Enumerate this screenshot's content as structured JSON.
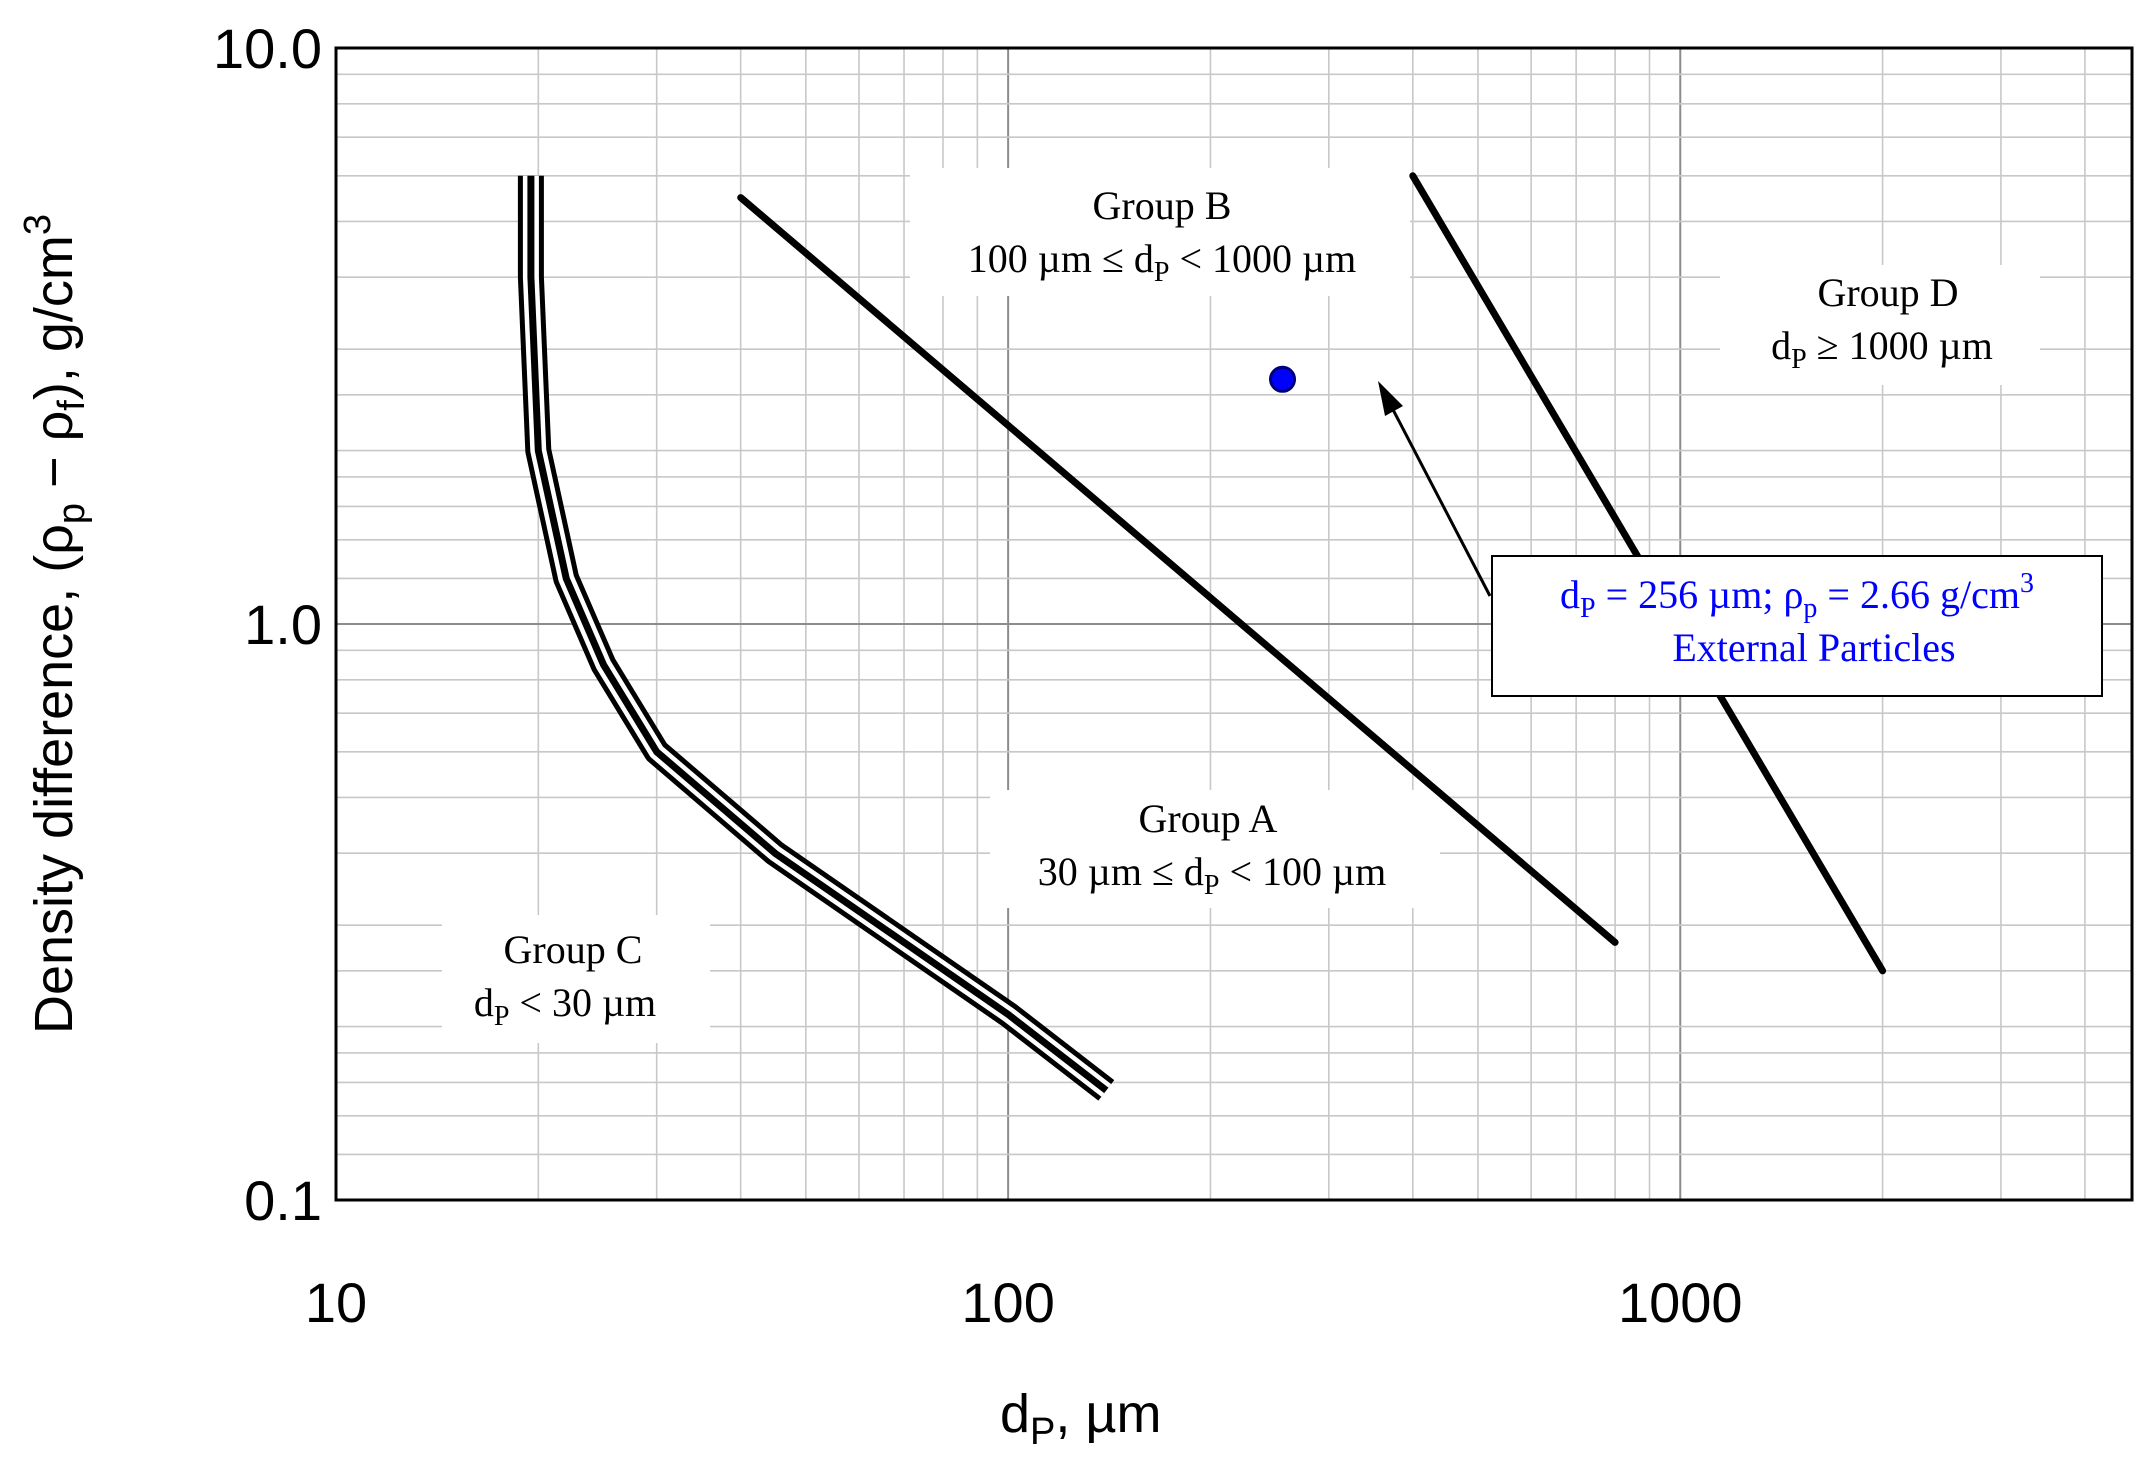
{
  "chart_data": {
    "type": "line",
    "title": "",
    "xlabel": "dP, µm",
    "ylabel": "Density difference, (ρp − ρf), g/cm3",
    "xscale": "log",
    "yscale": "log",
    "xlim": [
      10,
      4700
    ],
    "ylim": [
      0.1,
      10.0
    ],
    "grid": true,
    "xticks": [
      {
        "value": 10,
        "label": "10"
      },
      {
        "value": 100,
        "label": "100"
      },
      {
        "value": 1000,
        "label": "1000"
      }
    ],
    "yticks": [
      {
        "value": 0.1,
        "label": "0.1"
      },
      {
        "value": 1.0,
        "label": "1.0"
      },
      {
        "value": 10.0,
        "label": "10.0"
      }
    ],
    "series": [
      {
        "name": "C/A boundary",
        "style": "triple",
        "points": [
          [
            19.5,
            6.0
          ],
          [
            19.5,
            4.0
          ],
          [
            20,
            2.0
          ],
          [
            22,
            1.2
          ],
          [
            25,
            0.85
          ],
          [
            30,
            0.6
          ],
          [
            45,
            0.4
          ],
          [
            70,
            0.28
          ],
          [
            100,
            0.21
          ],
          [
            140,
            0.155
          ]
        ]
      },
      {
        "name": "A/B boundary",
        "style": "solid",
        "points": [
          [
            40,
            5.5
          ],
          [
            800,
            0.28
          ]
        ]
      },
      {
        "name": "B/D boundary",
        "style": "solid",
        "points": [
          [
            400,
            6.0
          ],
          [
            2000,
            0.25
          ]
        ]
      }
    ],
    "marker": {
      "name": "External Particles",
      "x": 256,
      "y": 2.66,
      "color": "#0000ff"
    },
    "annotations": {
      "group_c": {
        "title": "Group C",
        "range_prefix": "d",
        "range_sub": "P",
        "range_suffix": " < 30 µm"
      },
      "group_a": {
        "title": "Group A",
        "range_prefix": "30 µm ≤ d",
        "range_sub": "P",
        "range_suffix": " < 100 µm"
      },
      "group_b": {
        "title": "Group B",
        "range_prefix": "100 µm ≤ d",
        "range_sub": "P",
        "range_suffix": " < 1000 µm"
      },
      "group_d": {
        "title": "Group D",
        "range_prefix": "d",
        "range_sub": "P",
        "range_suffix": " ≥ 1000 µm"
      },
      "callout": {
        "d_prefix": "d",
        "d_sub": "P",
        "d_value": " = 256 µm; ρ",
        "rho_sub": "p",
        "rho_value": " = 2.66 g/cm",
        "rho_sup": "3",
        "line2": "External Particles"
      }
    },
    "axis_title_parts": {
      "x_main": "d",
      "x_sub": "P",
      "x_rest": ",  µm",
      "y_main": "Density difference,  (ρ",
      "y_sub1": "p",
      "y_mid": " − ρ",
      "y_sub2": "f",
      "y_rest": "),  g/cm",
      "y_sup": "3"
    }
  }
}
